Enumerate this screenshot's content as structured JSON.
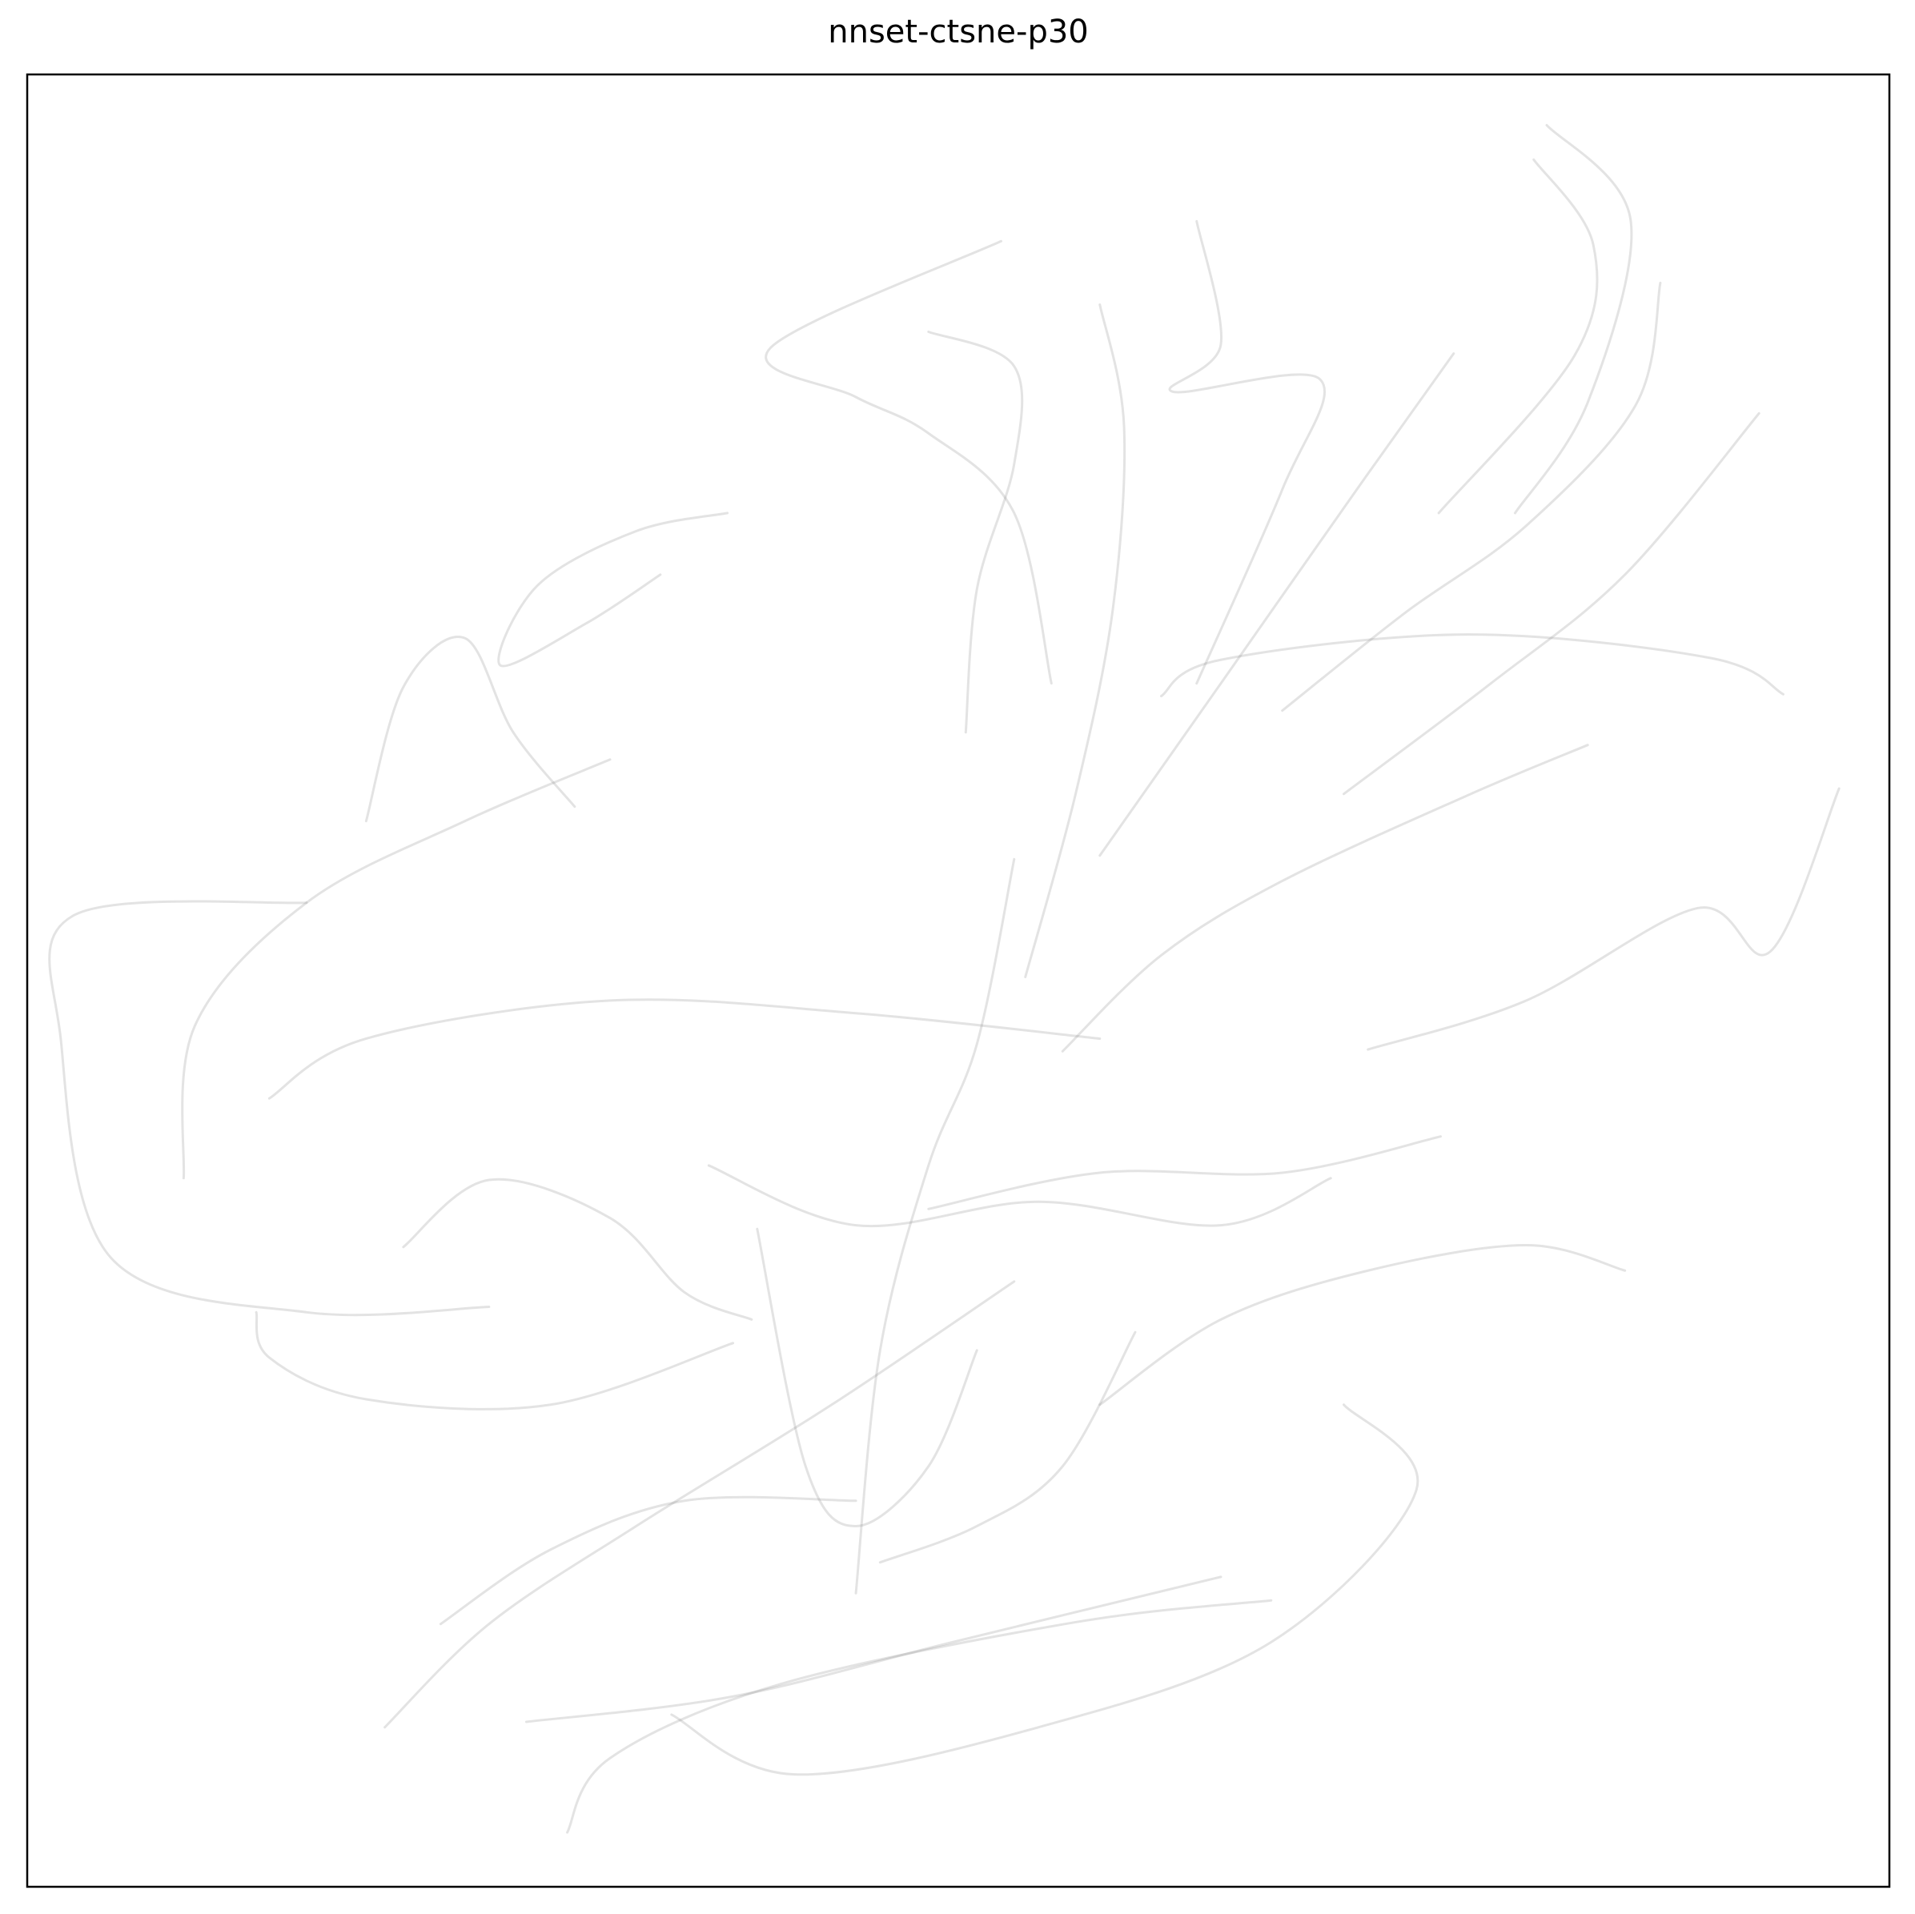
{
  "chart_data": {
    "type": "line",
    "title": "nnset-ctsne-p30",
    "xlim": [
      0,
      100
    ],
    "ylim": [
      0,
      100
    ],
    "grid": false,
    "alpha": 0.22,
    "series": [
      {
        "color": "#808080",
        "x": [
          81.6,
          86.1,
          83.8,
          79.9
        ],
        "values": [
          97.2,
          92,
          81.9,
          75.8
        ]
      },
      {
        "color": "#808080",
        "x": [
          80.9,
          84.1,
          83.1,
          75.8
        ],
        "values": [
          95.3,
          90.6,
          84.5,
          75.8
        ]
      },
      {
        "color": "#808080",
        "x": [
          93,
          85.8,
          78.6,
          70.7
        ],
        "values": [
          81.3,
          72.4,
          66.4,
          60.3
        ]
      },
      {
        "color": "#808080",
        "x": [
          8.4,
          9,
          15,
          23.5,
          31.3
        ],
        "values": [
          39.1,
          47.5,
          54.3,
          58.8,
          62.2
        ]
      },
      {
        "color": "#808080",
        "x": [
          15,
          2.5,
          1.8,
          4.5,
          15,
          24.8
        ],
        "values": [
          54.3,
          53.6,
          46.8,
          34.7,
          31.7,
          32
        ]
      },
      {
        "color": "#808080",
        "x": [
          52.3,
          39.9,
          44.5,
          48.4,
          53,
          55
        ],
        "values": [
          90.8,
          84.9,
          82.2,
          80.2,
          75.8,
          66.4
        ]
      },
      {
        "color": "#808080",
        "x": [
          48.4,
          53,
          53,
          51,
          50.4
        ],
        "values": [
          85.8,
          83.9,
          78.5,
          71.6,
          63.7
        ]
      },
      {
        "color": "#808080",
        "x": [
          29,
          31.3,
          40.5,
          56.3,
          66.8
        ],
        "values": [
          3,
          7.1,
          11.2,
          14.6,
          15.8
        ]
      },
      {
        "color": "#808080",
        "x": [
          19.2,
          24.8,
          32.7,
          43.2,
          53
        ],
        "values": [
          8.8,
          14.5,
          19.9,
          26.6,
          33.4
        ]
      },
      {
        "color": "#808080",
        "x": [
          34.6,
          41.2,
          54.3,
          66.8,
          74.6,
          70.7
        ],
        "values": [
          9.5,
          6.2,
          8.8,
          13.5,
          21.9,
          26.6
        ]
      },
      {
        "color": "#808080",
        "x": [
          97.3,
          93.6,
          89.7,
          80.5,
          72
        ],
        "values": [
          60.6,
          51.6,
          54,
          48.9,
          46.2
        ]
      },
      {
        "color": "#808080",
        "x": [
          94.3,
          90.4,
          77.3,
          64.1,
          60.9
        ],
        "values": [
          65.8,
          67.8,
          69.1,
          67.7,
          65.7
        ]
      },
      {
        "color": "#808080",
        "x": [
          85.8,
          80.5,
          72,
          64.1,
          57.6
        ],
        "values": [
          34,
          35.4,
          34,
          31.3,
          26.6
        ]
      },
      {
        "color": "#808080",
        "x": [
          62.8,
          64.1,
          61.5,
          69.4,
          67.4,
          62.8
        ],
        "values": [
          91.9,
          85.1,
          82.5,
          83.2,
          77.1,
          66.4
        ]
      },
      {
        "color": "#808080",
        "x": [
          76.6,
          71.4,
          64.1,
          57.6
        ],
        "values": [
          84.6,
          77.1,
          66.4,
          56.9
        ]
      },
      {
        "color": "#808080",
        "x": [
          37.6,
          32.7,
          27.4,
          25.4,
          30,
          34
        ],
        "values": [
          75.8,
          74.8,
          71.8,
          67.4,
          69.7,
          72.4
        ]
      },
      {
        "color": "#808080",
        "x": [
          18.2,
          20.2,
          23.5,
          26.1,
          29.4
        ],
        "values": [
          58.8,
          66.2,
          68.9,
          63.7,
          59.6
        ]
      },
      {
        "color": "#808080",
        "x": [
          13,
          18.2,
          31.3,
          44.5,
          57.6
        ],
        "values": [
          43.5,
          46.8,
          48.9,
          48.2,
          46.8
        ]
      },
      {
        "color": "#808080",
        "x": [
          12.3,
          13,
          18.2,
          28.1,
          37.9
        ],
        "values": [
          31.7,
          29.2,
          26.9,
          26.6,
          30
        ]
      },
      {
        "color": "#808080",
        "x": [
          26.8,
          37.9,
          49.7,
          64.1
        ],
        "values": [
          9.1,
          10.5,
          13.5,
          17.1
        ]
      },
      {
        "color": "#808080",
        "x": [
          44.5,
          45.8,
          48.4,
          51,
          53
        ],
        "values": [
          16.2,
          29.6,
          39.8,
          46.5,
          56.7
        ]
      },
      {
        "color": "#808080",
        "x": [
          36.6,
          44.5,
          54.3,
          64.1,
          70
        ],
        "values": [
          39.8,
          36.5,
          37.8,
          36.5,
          39.1
        ]
      },
      {
        "color": "#808080",
        "x": [
          39.2,
          41.8,
          44.5,
          48.4,
          51
        ],
        "values": [
          36.3,
          23.2,
          19.9,
          23.2,
          29.6
        ]
      },
      {
        "color": "#808080",
        "x": [
          59.5,
          55.6,
          51,
          45.8
        ],
        "values": [
          30.6,
          23.2,
          19.9,
          17.9
        ]
      },
      {
        "color": "#808080",
        "x": [
          55.6,
          60.9,
          67.4,
          77.3,
          83.8
        ],
        "values": [
          46.1,
          51.4,
          55.5,
          60.2,
          63
        ]
      },
      {
        "color": "#808080",
        "x": [
          20.2,
          24.8,
          31.3,
          35.3,
          38.9
        ],
        "values": [
          35.3,
          39,
          36.9,
          32.8,
          31.3
        ]
      },
      {
        "color": "#808080",
        "x": [
          22.2,
          28.1,
          35.3,
          44.5
        ],
        "values": [
          14.5,
          18.6,
          21.3,
          21.3
        ]
      },
      {
        "color": "#808080",
        "x": [
          57.6,
          58.9,
          58.3,
          56.3,
          53.6
        ],
        "values": [
          87.3,
          80.6,
          70.5,
          60.3,
          50.2
        ]
      },
      {
        "color": "#808080",
        "x": [
          87.7,
          86.4,
          80.5,
          74,
          67.4
        ],
        "values": [
          88.5,
          81.8,
          75.1,
          70.3,
          64.9
        ]
      },
      {
        "color": "#808080",
        "x": [
          75.9,
          67.4,
          57.6,
          48.4
        ],
        "values": [
          41.4,
          39.4,
          39.4,
          37.4
        ]
      }
    ]
  }
}
